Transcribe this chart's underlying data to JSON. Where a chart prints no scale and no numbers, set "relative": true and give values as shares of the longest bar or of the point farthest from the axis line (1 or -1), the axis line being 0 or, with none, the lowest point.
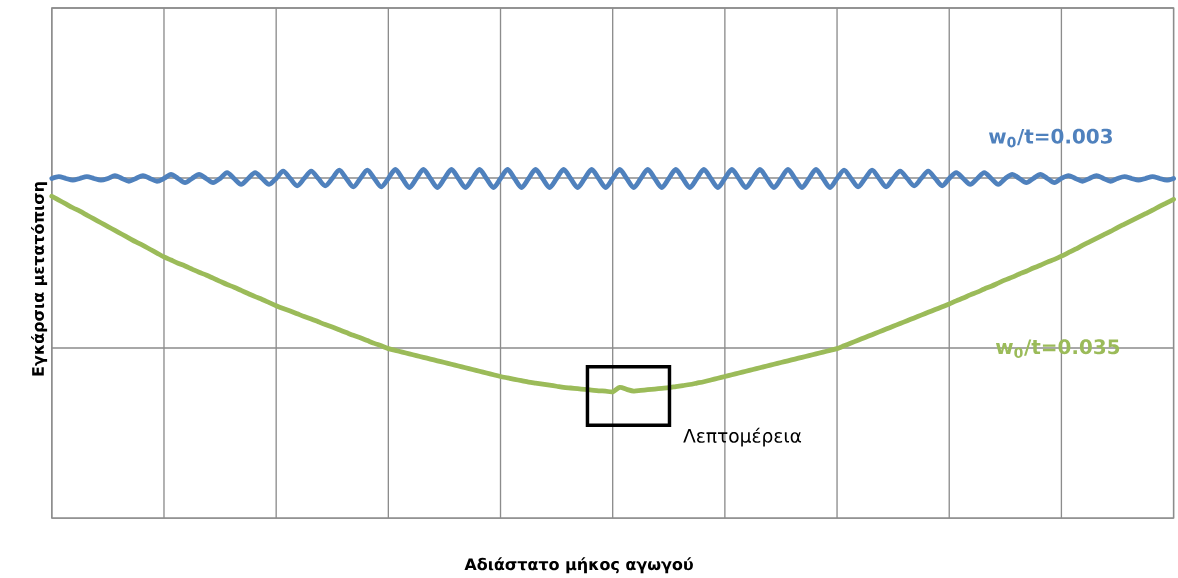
{
  "chart_data": {
    "type": "line",
    "xlabel": "Αδιάστατο μήκος αγωγού",
    "ylabel": "Εγκάρσια μετατόπιση",
    "relative": true,
    "grid": true,
    "annotations": [
      "Λεπτομέρεια"
    ],
    "categories": [
      null,
      null,
      null,
      null,
      null,
      null,
      null,
      null,
      null,
      null,
      null,
      null,
      null,
      null,
      null,
      null,
      null,
      null,
      null,
      null,
      null,
      null,
      null,
      null,
      null,
      null,
      null,
      null,
      null,
      null,
      null,
      null,
      null,
      null,
      null,
      null,
      null,
      null,
      null,
      null,
      null,
      null,
      null,
      null,
      null,
      null,
      null,
      null,
      null,
      null,
      null,
      null,
      null,
      null,
      null,
      null,
      null,
      null,
      null,
      null,
      null,
      null,
      null,
      null,
      null,
      null,
      null,
      null,
      null,
      null,
      null,
      null,
      null,
      null,
      null,
      null,
      null,
      null,
      null,
      null,
      null,
      null,
      null,
      null,
      null,
      null,
      null,
      null,
      null,
      null,
      null,
      null,
      null,
      null,
      null,
      null,
      null,
      null,
      null,
      null,
      null,
      null,
      null,
      null,
      null,
      null,
      null,
      null,
      null,
      null,
      null,
      null,
      null,
      null,
      null,
      null,
      null,
      null,
      null,
      null,
      null,
      null,
      null,
      null,
      null,
      null,
      null,
      null,
      null,
      null,
      null,
      null,
      null,
      null,
      null,
      null,
      null,
      null,
      null,
      null,
      null,
      null,
      null,
      null,
      null,
      null,
      null,
      null,
      null,
      null,
      null,
      null,
      null,
      null,
      null,
      null,
      null,
      null,
      null,
      null,
      null
    ],
    "series": [
      {
        "name": "**w$_{0}$/t=0.003**",
        "color": "#4f81bd",
        "values": [
          0.974,
          0.979,
          0.974,
          0.969,
          0.974,
          0.979,
          0.974,
          0.969,
          0.974,
          0.982,
          0.974,
          0.966,
          0.974,
          0.982,
          0.974,
          0.966,
          0.974,
          0.986,
          0.974,
          0.962,
          0.974,
          0.986,
          0.974,
          0.962,
          0.974,
          0.991,
          0.974,
          0.957,
          0.974,
          0.991,
          0.974,
          0.957,
          0.974,
          0.995,
          0.974,
          0.953,
          0.974,
          0.995,
          0.974,
          0.953,
          0.974,
          0.998,
          0.974,
          0.95,
          0.974,
          0.998,
          0.974,
          0.95,
          0.974,
          1.0,
          0.974,
          0.948,
          0.974,
          1.0,
          0.974,
          0.948,
          0.974,
          1.0,
          0.974,
          0.948,
          0.974,
          1.0,
          0.974,
          0.948,
          0.974,
          1.0,
          0.974,
          0.948,
          0.974,
          1.0,
          0.974,
          0.948,
          0.974,
          1.0,
          0.974,
          0.948,
          0.974,
          1.0,
          0.974,
          0.948,
          0.974,
          1.0,
          0.974,
          0.948,
          0.974,
          1.0,
          0.974,
          0.948,
          0.974,
          1.0,
          0.974,
          0.948,
          0.974,
          1.0,
          0.974,
          0.948,
          0.974,
          1.0,
          0.974,
          0.948,
          0.974,
          1.0,
          0.974,
          0.948,
          0.974,
          1.0,
          0.974,
          0.948,
          0.974,
          1.0,
          0.974,
          0.948,
          0.974,
          0.998,
          0.974,
          0.95,
          0.974,
          0.998,
          0.974,
          0.95,
          0.974,
          0.995,
          0.974,
          0.953,
          0.974,
          0.995,
          0.974,
          0.953,
          0.974,
          0.991,
          0.974,
          0.957,
          0.974,
          0.991,
          0.974,
          0.957,
          0.974,
          0.986,
          0.974,
          0.962,
          0.974,
          0.986,
          0.974,
          0.962,
          0.974,
          0.982,
          0.974,
          0.966,
          0.974,
          0.982,
          0.974,
          0.966,
          0.974,
          0.979,
          0.974,
          0.969,
          0.974,
          0.979,
          0.974,
          0.969,
          0.974
        ]
      },
      {
        "name": "**w$_{0}$/t=0.035**",
        "color": "#9bbb59",
        "values": [
          0.923,
          0.912,
          0.901,
          0.89,
          0.88,
          0.869,
          0.858,
          0.847,
          0.836,
          0.825,
          0.814,
          0.803,
          0.792,
          0.782,
          0.771,
          0.76,
          0.749,
          0.74,
          0.731,
          0.723,
          0.714,
          0.705,
          0.697,
          0.688,
          0.679,
          0.67,
          0.662,
          0.653,
          0.644,
          0.635,
          0.627,
          0.618,
          0.609,
          0.601,
          0.594,
          0.586,
          0.578,
          0.571,
          0.563,
          0.555,
          0.548,
          0.54,
          0.532,
          0.524,
          0.517,
          0.509,
          0.501,
          0.494,
          0.486,
          0.481,
          0.476,
          0.471,
          0.466,
          0.461,
          0.456,
          0.451,
          0.446,
          0.441,
          0.436,
          0.431,
          0.426,
          0.421,
          0.416,
          0.411,
          0.406,
          0.402,
          0.398,
          0.394,
          0.39,
          0.387,
          0.384,
          0.381,
          0.378,
          0.375,
          0.373,
          0.371,
          0.369,
          0.367,
          0.365,
          0.364,
          0.362,
          0.375,
          0.369,
          0.364,
          0.366,
          0.368,
          0.37,
          0.372,
          0.374,
          0.377,
          0.38,
          0.383,
          0.387,
          0.391,
          0.396,
          0.401,
          0.406,
          0.411,
          0.416,
          0.421,
          0.426,
          0.431,
          0.436,
          0.441,
          0.446,
          0.451,
          0.456,
          0.461,
          0.466,
          0.471,
          0.476,
          0.481,
          0.486,
          0.494,
          0.502,
          0.51,
          0.518,
          0.526,
          0.534,
          0.542,
          0.55,
          0.558,
          0.566,
          0.574,
          0.582,
          0.59,
          0.598,
          0.606,
          0.614,
          0.623,
          0.631,
          0.64,
          0.648,
          0.657,
          0.665,
          0.674,
          0.683,
          0.691,
          0.7,
          0.708,
          0.717,
          0.725,
          0.734,
          0.742,
          0.751,
          0.761,
          0.771,
          0.782,
          0.792,
          0.802,
          0.812,
          0.822,
          0.833,
          0.843,
          0.853,
          0.863,
          0.873,
          0.883,
          0.894,
          0.904,
          0.914
        ]
      }
    ]
  }
}
